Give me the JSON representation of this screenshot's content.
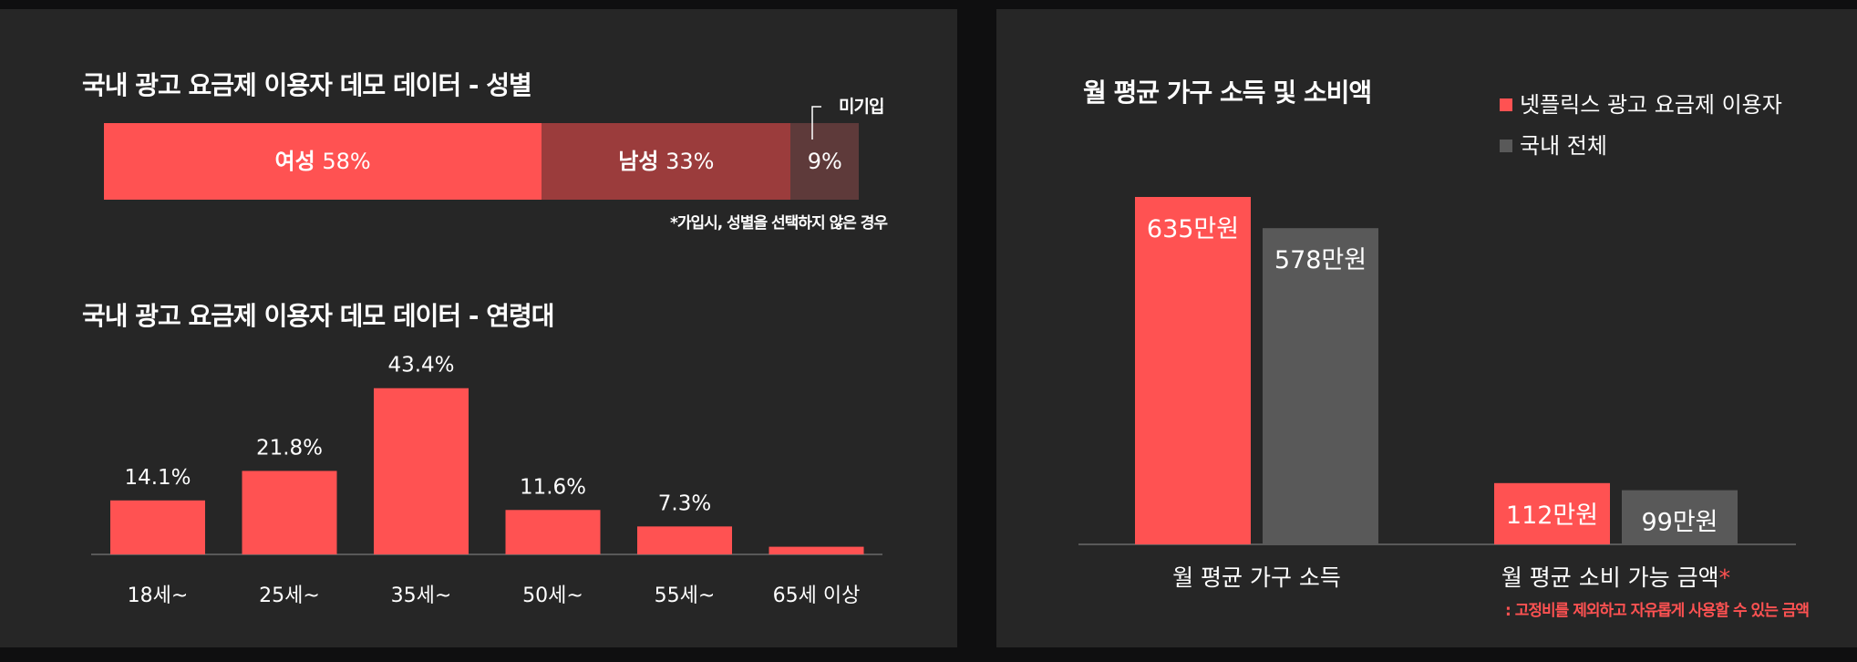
{
  "colors": {
    "red": "#ff5252",
    "dark_red": "#9b3c3c",
    "dark_brown": "#5e3a3a",
    "gray": "#595959",
    "axis": "#6a6a6a"
  },
  "gender_section": {
    "title": "국내 광고 요금제 이용자 데모 데이터 - 성별",
    "unregistered_label": "미기입",
    "footnote": "*가입시, 성별을 선택하지 않은 경우"
  },
  "age_section": {
    "title": "국내 광고 요금제 이용자 데모 데이터 - 연령대"
  },
  "income_section": {
    "title": "월 평균 가구 소득 및 소비액",
    "asterisk": "*",
    "footnote": ": 고정비를 제외하고 자유롭게 사용할 수 있는 금액"
  },
  "chart_data": [
    {
      "type": "bar",
      "orientation": "horizontal-stacked",
      "title": "국내 광고 요금제 이용자 데모 데이터 - 성별",
      "categories": [
        "여성",
        "남성",
        ""
      ],
      "values": [
        58,
        33,
        9
      ],
      "value_labels": [
        "58%",
        "33%",
        "9%"
      ],
      "annotation": "미기입",
      "note": "*가입시, 성별을 선택하지 않은 경우"
    },
    {
      "type": "bar",
      "title": "국내 광고 요금제 이용자 데모 데이터 - 연령대",
      "categories": [
        "18세~",
        "25세~",
        "35세~",
        "50세~",
        "55세~",
        "65세 이상"
      ],
      "values": [
        14.1,
        21.8,
        43.4,
        11.6,
        7.3,
        2.0
      ],
      "value_labels": [
        "14.1%",
        "21.8%",
        "43.4%",
        "11.6%",
        "7.3%",
        ""
      ],
      "ylim": [
        0,
        50
      ]
    },
    {
      "type": "bar",
      "title": "월 평균 가구 소득 및 소비액",
      "categories": [
        "월 평균 가구 소득",
        "월 평균 소비 가능 금액"
      ],
      "series": [
        {
          "name": "넷플릭스 광고 요금제 이용자",
          "values": [
            635,
            112
          ],
          "value_labels": [
            "635만원",
            "112만원"
          ]
        },
        {
          "name": "국내 전체",
          "values": [
            578,
            99
          ],
          "value_labels": [
            "578만원",
            "99만원"
          ]
        }
      ],
      "legend": "top-right",
      "ylim": [
        0,
        700
      ]
    }
  ]
}
